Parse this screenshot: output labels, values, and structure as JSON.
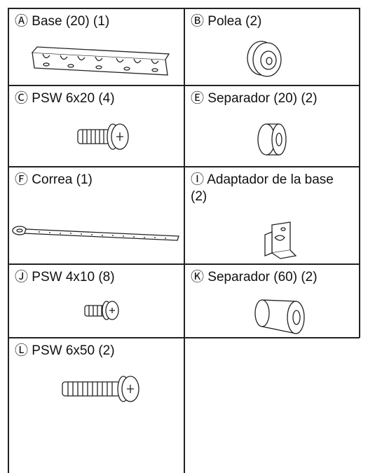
{
  "table": {
    "rows": [
      [
        "Ⓐ Base (20) (1)",
        "Ⓑ Polea (2)"
      ],
      [
        "Ⓒ PSW 6x20 (4)",
        "Ⓔ Separador (20) (2)"
      ],
      [
        "Ⓕ Correa (1)",
        "Ⓘ Adaptador de la base (2)"
      ],
      [
        "Ⓙ PSW 4x10 (8)",
        "Ⓚ Separador (60) (2)"
      ],
      [
        "Ⓛ PSW 6x50 (2)"
      ]
    ]
  }
}
